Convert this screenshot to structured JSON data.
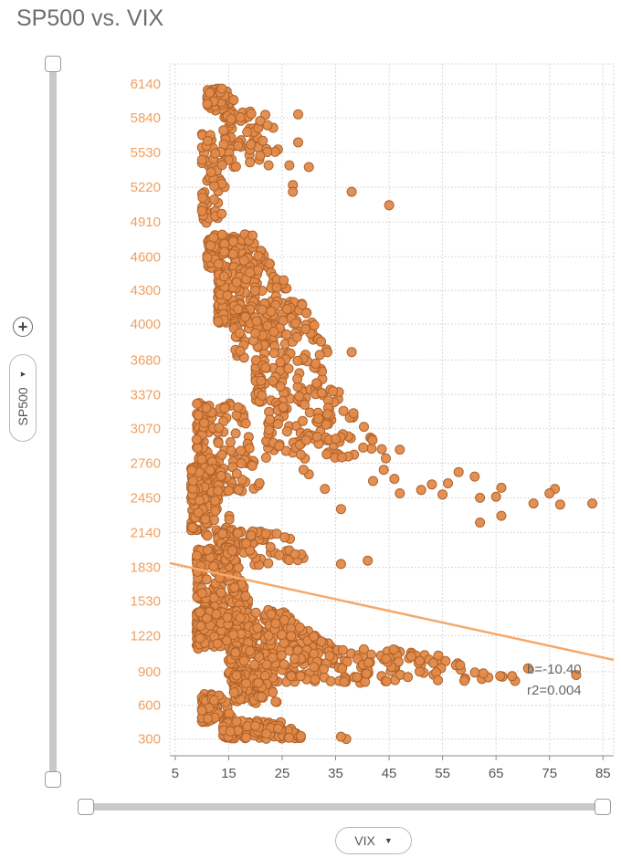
{
  "title": "SP500 vs. VIX",
  "y_axis_button": {
    "label": "SP500",
    "arrow": "▼"
  },
  "x_axis_button": {
    "label": "VIX",
    "arrow": "▼"
  },
  "add_button": {
    "label": "+"
  },
  "colors": {
    "accent": "#f0a060",
    "point_fill": "#e08a4a",
    "point_stroke": "#b0622a",
    "trend": "#f5a86a",
    "grid": "#d8d8d8"
  },
  "chart_data": {
    "type": "scatter",
    "title": "SP500 vs. VIX",
    "xlabel": "VIX",
    "ylabel": "SP500",
    "x_ticks": [
      5,
      15,
      25,
      35,
      45,
      55,
      65,
      75,
      85
    ],
    "y_ticks": [
      300,
      600,
      900,
      1220,
      1530,
      1830,
      2140,
      2450,
      2760,
      3070,
      3370,
      3680,
      4000,
      4300,
      4600,
      4910,
      5220,
      5530,
      5840,
      6140
    ],
    "xlim": [
      4,
      87
    ],
    "ylim": [
      150,
      6320
    ],
    "grid": true,
    "regression": {
      "slope": -10.4,
      "intercept": 1910,
      "label_b": "b=-10.40",
      "label_r2": "r2=0.004"
    },
    "clusters": [
      {
        "x": [
          11,
          17
        ],
        "y": [
          5900,
          6100
        ],
        "n": 60
      },
      {
        "x": [
          14,
          27
        ],
        "y": [
          5400,
          5900
        ],
        "n": 70
      },
      {
        "x": [
          10,
          15
        ],
        "y": [
          4900,
          5700
        ],
        "n": 60
      },
      {
        "x": [
          11,
          24
        ],
        "y": [
          4500,
          4800
        ],
        "n": 110
      },
      {
        "x": [
          13,
          30
        ],
        "y": [
          4000,
          4500
        ],
        "n": 150
      },
      {
        "x": [
          16,
          36
        ],
        "y": [
          3700,
          4200
        ],
        "n": 110
      },
      {
        "x": [
          20,
          38
        ],
        "y": [
          3300,
          3700
        ],
        "n": 90
      },
      {
        "x": [
          22,
          45
        ],
        "y": [
          2800,
          3300
        ],
        "n": 100
      },
      {
        "x": [
          9,
          22
        ],
        "y": [
          2500,
          3300
        ],
        "n": 150
      },
      {
        "x": [
          8,
          16
        ],
        "y": [
          2100,
          2800
        ],
        "n": 130
      },
      {
        "x": [
          13,
          32
        ],
        "y": [
          1850,
          2150
        ],
        "n": 90
      },
      {
        "x": [
          9,
          20
        ],
        "y": [
          1300,
          2000
        ],
        "n": 170
      },
      {
        "x": [
          9,
          35
        ],
        "y": [
          1100,
          1450
        ],
        "n": 300
      },
      {
        "x": [
          15,
          70
        ],
        "y": [
          800,
          1100
        ],
        "n": 230
      },
      {
        "x": [
          16,
          25
        ],
        "y": [
          620,
          880
        ],
        "n": 90
      },
      {
        "x": [
          10,
          16
        ],
        "y": [
          450,
          700
        ],
        "n": 70
      },
      {
        "x": [
          14,
          30
        ],
        "y": [
          300,
          460
        ],
        "n": 140
      }
    ],
    "outliers": [
      {
        "x": 38,
        "y": 5180
      },
      {
        "x": 45,
        "y": 5060
      },
      {
        "x": 83,
        "y": 2400
      },
      {
        "x": 80,
        "y": 870
      },
      {
        "x": 77,
        "y": 2390
      },
      {
        "x": 76,
        "y": 2530
      },
      {
        "x": 75,
        "y": 2490
      },
      {
        "x": 72,
        "y": 2400
      },
      {
        "x": 66,
        "y": 2540
      },
      {
        "x": 65,
        "y": 2460
      },
      {
        "x": 62,
        "y": 2450
      },
      {
        "x": 62,
        "y": 2230
      },
      {
        "x": 61,
        "y": 2640
      },
      {
        "x": 58,
        "y": 2680
      },
      {
        "x": 56,
        "y": 2580
      },
      {
        "x": 55,
        "y": 2480
      },
      {
        "x": 53,
        "y": 2570
      },
      {
        "x": 51,
        "y": 2520
      },
      {
        "x": 47,
        "y": 2880
      },
      {
        "x": 47,
        "y": 2490
      },
      {
        "x": 46,
        "y": 2620
      },
      {
        "x": 44,
        "y": 2700
      },
      {
        "x": 42,
        "y": 2600
      },
      {
        "x": 41,
        "y": 1890
      },
      {
        "x": 36,
        "y": 1860
      },
      {
        "x": 36,
        "y": 2350
      },
      {
        "x": 33,
        "y": 2530
      },
      {
        "x": 30,
        "y": 2660
      },
      {
        "x": 29,
        "y": 2700
      },
      {
        "x": 38,
        "y": 3750
      },
      {
        "x": 28,
        "y": 5870
      },
      {
        "x": 28,
        "y": 5620
      },
      {
        "x": 27,
        "y": 5240
      },
      {
        "x": 27,
        "y": 5180
      },
      {
        "x": 30,
        "y": 5400
      },
      {
        "x": 37,
        "y": 300
      },
      {
        "x": 36,
        "y": 320
      },
      {
        "x": 66,
        "y": 2290
      },
      {
        "x": 71,
        "y": 930
      },
      {
        "x": 68,
        "y": 860
      }
    ]
  }
}
